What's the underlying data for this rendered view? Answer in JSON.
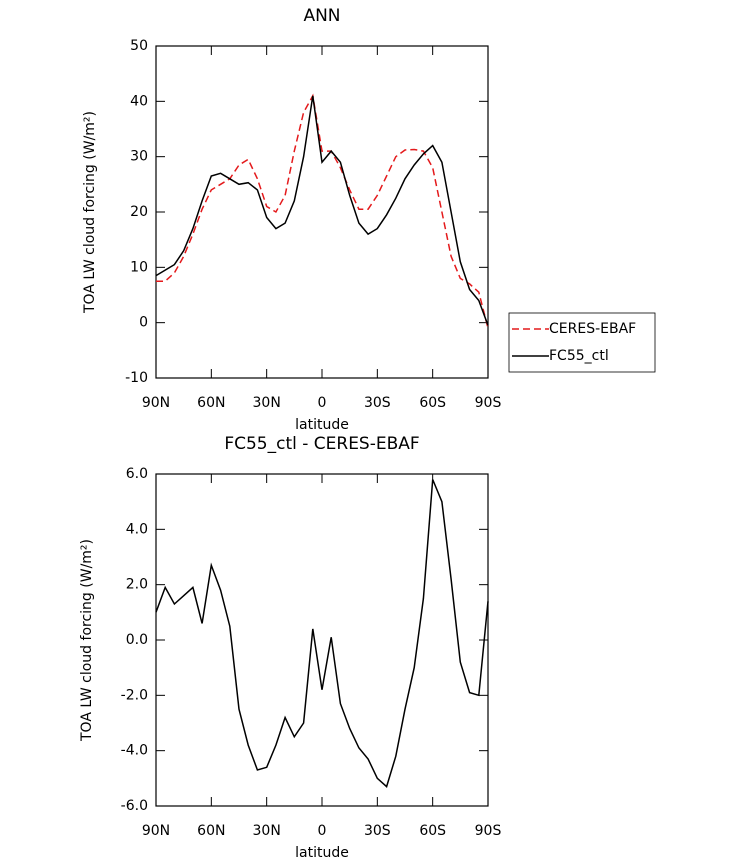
{
  "chart_data": [
    {
      "type": "line",
      "title": "ANN",
      "xlabel": "latitude",
      "ylabel": "TOA LW cloud forcing (W/m²)",
      "x": [
        90,
        85,
        80,
        75,
        70,
        65,
        60,
        55,
        50,
        45,
        40,
        35,
        30,
        25,
        20,
        15,
        10,
        5,
        0,
        -5,
        -10,
        -15,
        -20,
        -25,
        -30,
        -35,
        -40,
        -45,
        -50,
        -55,
        -60,
        -65,
        -70,
        -75,
        -80,
        -85,
        -90
      ],
      "series": [
        {
          "name": "CERES-EBAF",
          "color": "#e41a1c",
          "linestyle": "dashed",
          "values": [
            7.5,
            7.5,
            9,
            12,
            16,
            20.5,
            24,
            25,
            26,
            28.5,
            29.5,
            26,
            21,
            20,
            23,
            31,
            38,
            41,
            31,
            31,
            28,
            24,
            20.5,
            20.5,
            23,
            26.5,
            30,
            31.2,
            31.3,
            31,
            28,
            20,
            12,
            8,
            7,
            5.5,
            -1
          ]
        },
        {
          "name": "FC55_ctl",
          "color": "#000000",
          "linestyle": "solid",
          "values": [
            8.5,
            9.5,
            10.5,
            13,
            17,
            22,
            26.5,
            27,
            26,
            25,
            25.3,
            24,
            19,
            17,
            18,
            22,
            30,
            41,
            29,
            31,
            29,
            23,
            18,
            16,
            17,
            19.5,
            22.5,
            26,
            28.5,
            30.5,
            32,
            29,
            20,
            11,
            6,
            4,
            -0.5
          ]
        }
      ],
      "xlim": [
        90,
        -90
      ],
      "xticks": [
        {
          "value": 90,
          "label": "90N"
        },
        {
          "value": 60,
          "label": "60N"
        },
        {
          "value": 30,
          "label": "30N"
        },
        0,
        {
          "value": -30,
          "label": "30S"
        },
        {
          "value": -60,
          "label": "60S"
        },
        {
          "value": -90,
          "label": "90S"
        }
      ],
      "ylim": [
        -10,
        50
      ],
      "yticks": [
        -10,
        0,
        10,
        20,
        30,
        40,
        50
      ],
      "legend": "right"
    },
    {
      "type": "line",
      "title": "FC55_ctl - CERES-EBAF",
      "xlabel": "latitude",
      "ylabel": "TOA LW cloud forcing (W/m²)",
      "x": [
        90,
        85,
        80,
        75,
        70,
        65,
        60,
        55,
        50,
        45,
        40,
        35,
        30,
        25,
        20,
        15,
        10,
        5,
        0,
        -5,
        -10,
        -15,
        -20,
        -25,
        -30,
        -35,
        -40,
        -45,
        -50,
        -55,
        -60,
        -65,
        -70,
        -75,
        -80,
        -85,
        -90
      ],
      "values": [
        1.0,
        1.9,
        1.3,
        1.6,
        1.9,
        0.6,
        2.7,
        1.8,
        0.5,
        -2.5,
        -3.8,
        -4.7,
        -4.6,
        -3.8,
        -2.8,
        -3.5,
        -3.0,
        0.4,
        -1.8,
        0.1,
        -2.3,
        -3.2,
        -3.9,
        -4.3,
        -5.0,
        -5.3,
        -4.2,
        -2.5,
        -1.0,
        1.5,
        5.8,
        5.0,
        2.2,
        -0.8,
        -1.9,
        -2.0,
        1.4
      ],
      "color": "#000000",
      "xlim": [
        90,
        -90
      ],
      "xticks": [
        {
          "value": 90,
          "label": "90N"
        },
        {
          "value": 60,
          "label": "60N"
        },
        {
          "value": 30,
          "label": "30N"
        },
        0,
        {
          "value": -30,
          "label": "30S"
        },
        {
          "value": -60,
          "label": "60S"
        },
        {
          "value": -90,
          "label": "90S"
        }
      ],
      "ylim": [
        -6,
        6
      ],
      "yticks": [
        {
          "value": -6,
          "label": "-6.0"
        },
        {
          "value": -4,
          "label": "-4.0"
        },
        {
          "value": -2,
          "label": "-2.0"
        },
        {
          "value": 0,
          "label": "0.0"
        },
        {
          "value": 2,
          "label": "2.0"
        },
        {
          "value": 4,
          "label": "4.0"
        },
        {
          "value": 6,
          "label": "6.0"
        }
      ]
    }
  ]
}
